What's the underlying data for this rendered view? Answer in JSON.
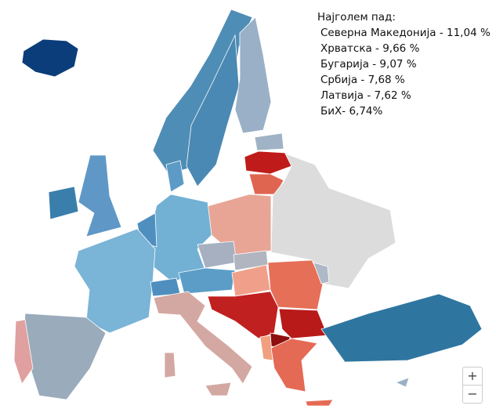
{
  "annotation": {
    "title": "Најголем пад:",
    "lines": [
      "Северна Македонија - 11,04 %",
      "Хрватска - 9,66 %",
      "Бугарија - 9,07 %",
      "Србија - 7,68 %",
      "Латвија - 7,62 %",
      "БиХ- 6,74%"
    ]
  },
  "zoom_controls": {
    "zoom_in": "+",
    "zoom_out": "−"
  }
}
